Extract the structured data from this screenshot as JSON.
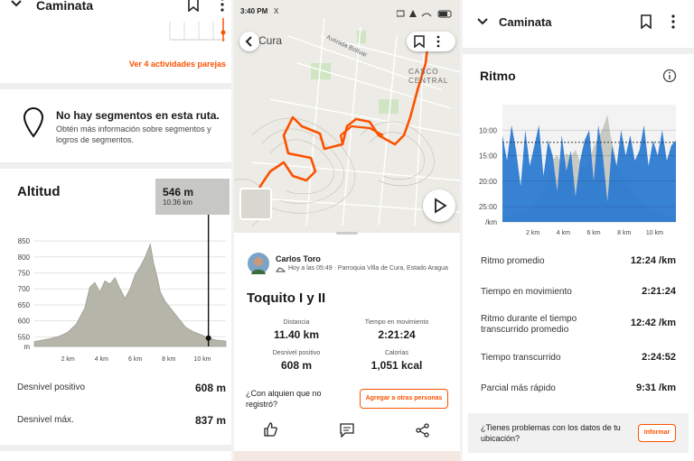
{
  "colors": {
    "accent": "#fc5200",
    "pace_fill": "#2d7bd2",
    "elev_fill": "#b5b5aa"
  },
  "left": {
    "header_title": "Caminata",
    "similar_link": "Ver 4 actividades parejas",
    "segments_title": "No hay segmentos en esta ruta.",
    "segments_desc": "Obtén más información sobre segmentos y logros de segmentos.",
    "altitude_title": "Altitud",
    "tooltip_elev": "546 m",
    "tooltip_dist": "10.36 km",
    "stats": [
      {
        "label": "Desnivel positivo",
        "value": "608 m"
      },
      {
        "label": "Desnivel máx.",
        "value": "837 m"
      }
    ]
  },
  "middle": {
    "status_time": "3:40 PM",
    "status_x": "X",
    "map_label_city": "Cura",
    "map_label_street": "Avenida Bolívar",
    "map_label_center": "CASCO CENTRAL",
    "athlete_name": "Carlos Toro",
    "athlete_meta": "Hoy a las 05:49 · Parroquia Villa de Cura, Estado Aragua",
    "activity_title": "Toquito I y II",
    "stats": [
      {
        "label": "Distancia",
        "value": "11.40 km"
      },
      {
        "label": "Tiempo en movimiento",
        "value": "2:21:24"
      },
      {
        "label": "Desnivel positivo",
        "value": "608 m"
      },
      {
        "label": "Calorías",
        "value": "1,051 kcal"
      }
    ],
    "question": "¿Con alquien que no registró?",
    "add_people_button": "Agregar a otras personas"
  },
  "right": {
    "header_title": "Caminata",
    "pace_title": "Ritmo",
    "stats": [
      {
        "label": "Ritmo promedio",
        "value": "12:24 /km"
      },
      {
        "label": "Tiempo en movimiento",
        "value": "2:21:24"
      },
      {
        "label": "Ritmo durante el tiempo transcurrido promedio",
        "value": "12:42 /km"
      },
      {
        "label": "Tiempo transcurrido",
        "value": "2:24:52"
      },
      {
        "label": "Parcial más rápido",
        "value": "9:31 /km"
      }
    ],
    "problem_text": "¿Tienes problemas con los datos de tu ubicación?",
    "report_button": "Informar"
  },
  "chart_data": [
    {
      "type": "area",
      "title": "Altitud",
      "xlabel": "",
      "ylabel": "",
      "x_ticks": [
        "2 km",
        "4 km",
        "6 km",
        "8 km",
        "10 km"
      ],
      "y_ticks": [
        "850",
        "800",
        "750",
        "700",
        "650",
        "600",
        "550",
        "m"
      ],
      "ylim": [
        520,
        870
      ],
      "xlim": [
        0,
        11.4
      ],
      "x": [
        0,
        0.5,
        1,
        1.5,
        2,
        2.5,
        3,
        3.3,
        3.6,
        3.9,
        4.2,
        4.5,
        4.8,
        5.1,
        5.4,
        5.7,
        6,
        6.3,
        6.6,
        6.9,
        7.1,
        7.3,
        7.5,
        7.8,
        8.1,
        8.4,
        8.7,
        9,
        9.5,
        10,
        10.36,
        10.8,
        11.4
      ],
      "y": [
        535,
        540,
        545,
        552,
        565,
        590,
        640,
        705,
        720,
        690,
        725,
        715,
        735,
        700,
        670,
        700,
        745,
        770,
        800,
        840,
        780,
        740,
        690,
        660,
        640,
        620,
        600,
        580,
        565,
        555,
        546,
        540,
        537
      ]
    },
    {
      "type": "area",
      "title": "Ritmo",
      "xlabel": "",
      "ylabel": "",
      "x_ticks": [
        "2 km",
        "4 km",
        "6 km",
        "8 km",
        "10 km"
      ],
      "y_ticks": [
        "10:00",
        "15:00",
        "20:00",
        "25:00",
        "/km"
      ],
      "xlim": [
        0,
        11.4
      ],
      "series": [
        {
          "name": "",
          "x": [
            0,
            0.3,
            0.6,
            0.9,
            1.2,
            1.5,
            1.8,
            2.1,
            2.4,
            2.7,
            3,
            3.3,
            3.6,
            3.9,
            4.2,
            4.5,
            4.8,
            5.1,
            5.4,
            5.7,
            6,
            6.3,
            6.6,
            6.9,
            7.2,
            7.5,
            7.8,
            8.1,
            8.4,
            8.7,
            9,
            9.3,
            9.6,
            9.9,
            10.2,
            10.5,
            10.8,
            11.1,
            11.4
          ],
          "y": [
            11,
            16,
            9,
            14,
            21,
            10,
            17,
            13,
            9,
            19,
            12,
            15,
            22,
            11,
            18,
            14,
            23,
            16,
            12,
            10,
            20,
            9,
            15,
            24,
            13,
            17,
            10,
            15,
            11,
            16,
            14,
            9,
            17,
            12,
            15,
            10,
            16,
            13,
            12
          ]
        }
      ]
    }
  ]
}
